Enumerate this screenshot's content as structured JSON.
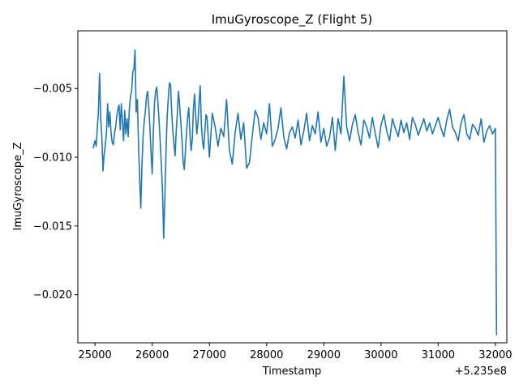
{
  "chart_data": {
    "type": "line",
    "title": "ImuGyroscope_Z (Flight 5)",
    "xlabel": "Timestamp",
    "ylabel": "ImuGyroscope_Z",
    "x_offset_label": "+5.235e8",
    "xlim": [
      24700,
      32200
    ],
    "ylim": [
      -0.0235,
      -0.0008
    ],
    "x_ticks": [
      25000,
      26000,
      27000,
      28000,
      29000,
      30000,
      31000,
      32000
    ],
    "y_ticks": [
      -0.02,
      -0.015,
      -0.01,
      -0.005
    ],
    "x_tick_labels": [
      "25000",
      "26000",
      "27000",
      "28000",
      "29000",
      "30000",
      "31000",
      "32000"
    ],
    "y_tick_labels": [
      "−0.020",
      "−0.015",
      "−0.010",
      "−0.005"
    ],
    "grid": false,
    "line_color": "#1f77b4",
    "series": [
      {
        "x": [
          24970,
          25000,
          25020,
          25040,
          25060,
          25080,
          25100,
          25120,
          25140,
          25160,
          25180,
          25200,
          25220,
          25240,
          25260,
          25280,
          25300,
          25320,
          25340,
          25360,
          25380,
          25400,
          25420,
          25440,
          25460,
          25480,
          25500,
          25520,
          25540,
          25560,
          25580,
          25600,
          25620,
          25640,
          25660,
          25680,
          25700,
          25720,
          25740,
          25760,
          25780,
          25800,
          25820,
          25840,
          25860,
          25880,
          25900,
          25920,
          25940,
          25960,
          25980,
          26000,
          26020,
          26040,
          26060,
          26080,
          26100,
          26120,
          26140,
          26160,
          26180,
          26200,
          26220,
          26240,
          26260,
          26280,
          26300,
          26320,
          26340,
          26360,
          26380,
          26400,
          26420,
          26440,
          26460,
          26480,
          26500,
          26520,
          26540,
          26560,
          26580,
          26600,
          26620,
          26640,
          26660,
          26680,
          26700,
          26720,
          26740,
          26760,
          26780,
          26800,
          26820,
          26840,
          26860,
          26880,
          26900,
          26920,
          26940,
          26960,
          26980,
          27000,
          27050,
          27100,
          27150,
          27200,
          27250,
          27300,
          27350,
          27400,
          27450,
          27500,
          27550,
          27600,
          27650,
          27700,
          27750,
          27800,
          27850,
          27900,
          27950,
          28000,
          28050,
          28100,
          28150,
          28200,
          28250,
          28300,
          28350,
          28400,
          28450,
          28500,
          28550,
          28600,
          28650,
          28700,
          28750,
          28800,
          28850,
          28900,
          28950,
          29000,
          29050,
          29100,
          29150,
          29200,
          29250,
          29300,
          29350,
          29400,
          29450,
          29500,
          29550,
          29600,
          29650,
          29700,
          29750,
          29800,
          29850,
          29900,
          29950,
          30000,
          30050,
          30100,
          30150,
          30200,
          30250,
          30300,
          30350,
          30400,
          30450,
          30500,
          30550,
          30600,
          30650,
          30700,
          30750,
          30800,
          30850,
          30900,
          30950,
          31000,
          31050,
          31100,
          31150,
          31200,
          31250,
          31300,
          31350,
          31400,
          31450,
          31500,
          31550,
          31600,
          31650,
          31700,
          31750,
          31800,
          31850,
          31900,
          31950,
          32000,
          32020
        ],
        "y": [
          -0.0093,
          -0.0088,
          -0.0092,
          -0.0079,
          -0.0066,
          -0.0039,
          -0.0072,
          -0.0085,
          -0.011,
          -0.0098,
          -0.0091,
          -0.0082,
          -0.0061,
          -0.0078,
          -0.0067,
          -0.0082,
          -0.0089,
          -0.0091,
          -0.0083,
          -0.0078,
          -0.007,
          -0.0065,
          -0.0062,
          -0.008,
          -0.0061,
          -0.0075,
          -0.0088,
          -0.0066,
          -0.0083,
          -0.0072,
          -0.0085,
          -0.0065,
          -0.0056,
          -0.0052,
          -0.0038,
          -0.0036,
          -0.0022,
          -0.0067,
          -0.0058,
          -0.009,
          -0.0115,
          -0.0137,
          -0.0107,
          -0.0085,
          -0.0074,
          -0.0067,
          -0.0056,
          -0.0052,
          -0.0064,
          -0.0079,
          -0.0097,
          -0.0112,
          -0.0082,
          -0.0061,
          -0.0052,
          -0.0049,
          -0.006,
          -0.0074,
          -0.0089,
          -0.0106,
          -0.0125,
          -0.0159,
          -0.0132,
          -0.0099,
          -0.0072,
          -0.0058,
          -0.0046,
          -0.0047,
          -0.0067,
          -0.0081,
          -0.009,
          -0.0099,
          -0.0081,
          -0.0068,
          -0.0052,
          -0.0062,
          -0.0075,
          -0.0087,
          -0.0103,
          -0.0109,
          -0.0096,
          -0.0082,
          -0.0071,
          -0.0064,
          -0.0083,
          -0.0095,
          -0.0087,
          -0.0065,
          -0.0054,
          -0.0069,
          -0.0083,
          -0.0075,
          -0.006,
          -0.0048,
          -0.0077,
          -0.0089,
          -0.0094,
          -0.0081,
          -0.0069,
          -0.0071,
          -0.0086,
          -0.01,
          -0.0068,
          -0.0078,
          -0.0092,
          -0.0079,
          -0.0085,
          -0.0058,
          -0.0095,
          -0.0105,
          -0.0082,
          -0.0068,
          -0.0087,
          -0.0075,
          -0.0108,
          -0.0104,
          -0.0084,
          -0.0066,
          -0.0071,
          -0.0087,
          -0.0075,
          -0.0083,
          -0.0061,
          -0.0092,
          -0.0087,
          -0.0079,
          -0.0064,
          -0.0085,
          -0.0094,
          -0.0082,
          -0.0078,
          -0.0086,
          -0.0073,
          -0.0091,
          -0.0081,
          -0.0068,
          -0.0088,
          -0.0077,
          -0.0083,
          -0.0067,
          -0.0089,
          -0.0079,
          -0.0092,
          -0.0086,
          -0.0071,
          -0.0095,
          -0.0072,
          -0.0083,
          -0.0041,
          -0.0078,
          -0.0088,
          -0.0076,
          -0.0069,
          -0.0082,
          -0.0091,
          -0.0073,
          -0.0078,
          -0.0086,
          -0.0071,
          -0.0083,
          -0.0093,
          -0.0077,
          -0.0069,
          -0.0081,
          -0.0088,
          -0.0072,
          -0.0079,
          -0.0085,
          -0.0073,
          -0.0082,
          -0.0075,
          -0.0087,
          -0.0071,
          -0.0076,
          -0.0084,
          -0.0078,
          -0.0072,
          -0.0081,
          -0.0075,
          -0.0083,
          -0.0077,
          -0.0071,
          -0.0079,
          -0.0085,
          -0.0073,
          -0.0065,
          -0.0078,
          -0.0082,
          -0.0088,
          -0.0075,
          -0.0069,
          -0.0083,
          -0.0087,
          -0.0076,
          -0.0079,
          -0.0084,
          -0.0072,
          -0.0089,
          -0.0081,
          -0.0077,
          -0.0083,
          -0.0079,
          -0.0229
        ]
      }
    ]
  }
}
